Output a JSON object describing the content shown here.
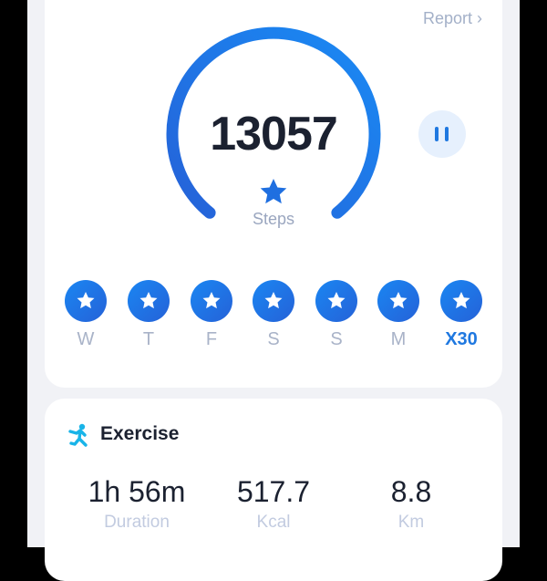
{
  "header": {
    "report_label": "Report ›"
  },
  "steps": {
    "count": "13057",
    "label": "Steps",
    "icon": "star-icon"
  },
  "pause_button": {
    "icon": "pause-icon"
  },
  "week": {
    "days": [
      {
        "label": "W",
        "achieved": true
      },
      {
        "label": "T",
        "achieved": true
      },
      {
        "label": "F",
        "achieved": true
      },
      {
        "label": "S",
        "achieved": true
      },
      {
        "label": "S",
        "achieved": true
      },
      {
        "label": "M",
        "achieved": true
      },
      {
        "label": "X30",
        "achieved": true,
        "highlight": true
      }
    ]
  },
  "exercise": {
    "title": "Exercise",
    "icon": "running-person-icon",
    "stats": [
      {
        "value": "1h 56m",
        "label": "Duration"
      },
      {
        "value": "517.7",
        "label": "Kcal"
      },
      {
        "value": "8.8",
        "label": "Km"
      }
    ]
  },
  "colors": {
    "accent": "#1f78e0",
    "gauge_start": "#2562d8",
    "gauge_end": "#1a8af4",
    "exercise_icon": "#19b4e8"
  }
}
